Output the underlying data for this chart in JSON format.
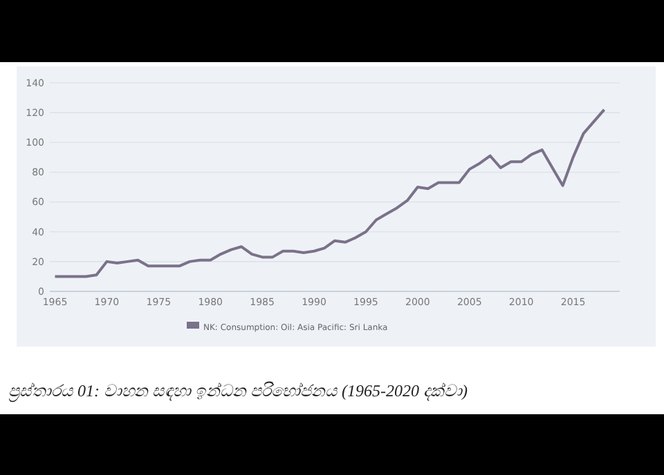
{
  "chart_data": {
    "type": "line",
    "annotations": [
      "ප්‍රස්තාරය 01: වාහන සඳහා ඉන්ධන පරිභෝජනය (1965-2020 දක්වා)"
    ],
    "x": [
      1965,
      1966,
      1967,
      1968,
      1969,
      1970,
      1971,
      1972,
      1973,
      1974,
      1975,
      1976,
      1977,
      1978,
      1979,
      1980,
      1981,
      1982,
      1983,
      1984,
      1985,
      1986,
      1987,
      1988,
      1989,
      1990,
      1991,
      1992,
      1993,
      1994,
      1995,
      1996,
      1997,
      1998,
      1999,
      2000,
      2001,
      2002,
      2003,
      2004,
      2005,
      2006,
      2007,
      2008,
      2009,
      2010,
      2011,
      2012,
      2013,
      2014,
      2015,
      2016,
      2017,
      2018
    ],
    "series": [
      {
        "name": "NK: Consumption: Oil: Asia Pacific: Sri Lanka",
        "color": "#7b7189",
        "values": [
          10,
          10,
          10,
          10,
          11,
          20,
          19,
          20,
          21,
          17,
          17,
          17,
          17,
          20,
          21,
          21,
          25,
          28,
          30,
          25,
          23,
          23,
          27,
          27,
          26,
          27,
          29,
          34,
          33,
          36,
          40,
          48,
          52,
          56,
          61,
          70,
          69,
          73,
          73,
          73,
          82,
          86,
          91,
          83,
          87,
          87,
          92,
          95,
          83,
          71,
          90,
          106,
          114,
          122
        ]
      }
    ],
    "xlim": [
      1964.5,
      2019.5
    ],
    "xticks": [
      1965,
      1970,
      1975,
      1980,
      1985,
      1990,
      1995,
      2000,
      2005,
      2010,
      2015
    ],
    "ylim": [
      0,
      140
    ],
    "yticks": [
      0,
      20,
      40,
      60,
      80,
      100,
      120,
      140
    ],
    "grid": "y",
    "legend": "bottom",
    "marker": "none",
    "line_style": "solid"
  }
}
